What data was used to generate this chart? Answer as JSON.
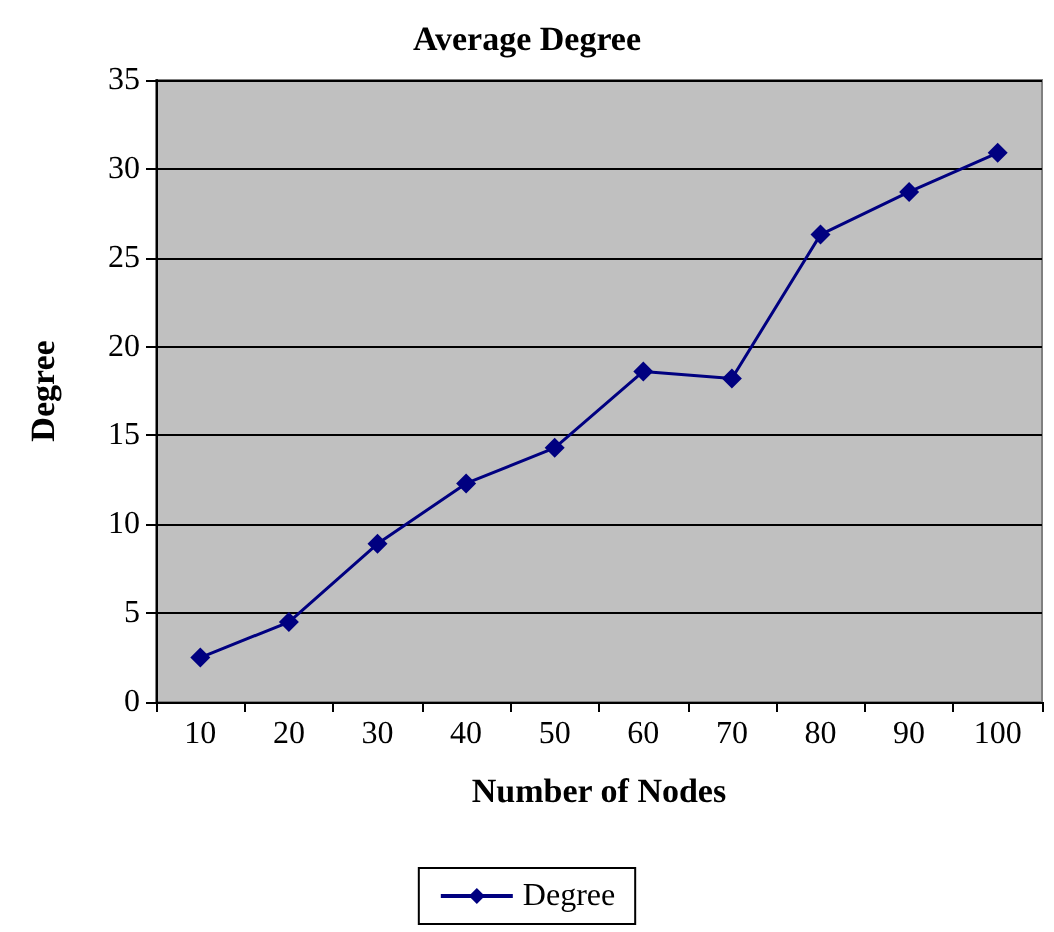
{
  "chart_data": {
    "type": "line",
    "title": "Average Degree",
    "xlabel": "Number of Nodes",
    "ylabel": "Degree",
    "categories": [
      "10",
      "20",
      "30",
      "40",
      "50",
      "60",
      "70",
      "80",
      "90",
      "100"
    ],
    "series": [
      {
        "name": "Degree",
        "color": "#000080",
        "values": [
          2.5,
          4.5,
          8.9,
          12.3,
          14.3,
          18.6,
          18.2,
          26.3,
          28.7,
          30.9
        ]
      }
    ],
    "ylim": [
      0,
      35
    ],
    "yticks": [
      0,
      5,
      10,
      15,
      20,
      25,
      30,
      35
    ],
    "grid": "y",
    "legend": "bottom",
    "marker": "diamond",
    "line_style": "solid"
  }
}
